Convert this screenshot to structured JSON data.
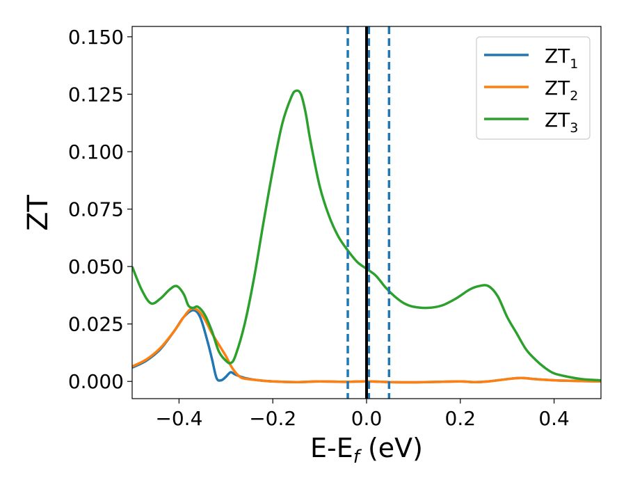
{
  "chart_data": {
    "type": "line",
    "title": "",
    "xlabel": {
      "main": "E-E",
      "sub": "f",
      "unit": " (eV)"
    },
    "ylabel": "ZT",
    "xlim": [
      -0.5,
      0.5
    ],
    "ylim": [
      -0.0075,
      0.1545
    ],
    "x_ticks": [
      {
        "value": -0.4,
        "label": "−0.4"
      },
      {
        "value": -0.2,
        "label": "−0.2"
      },
      {
        "value": 0.0,
        "label": "0.0"
      },
      {
        "value": 0.2,
        "label": "0.2"
      },
      {
        "value": 0.4,
        "label": "0.4"
      }
    ],
    "y_ticks": [
      {
        "value": 0.0,
        "label": "0.000"
      },
      {
        "value": 0.025,
        "label": "0.025"
      },
      {
        "value": 0.05,
        "label": "0.050"
      },
      {
        "value": 0.075,
        "label": "0.075"
      },
      {
        "value": 0.1,
        "label": "0.100"
      },
      {
        "value": 0.125,
        "label": "0.125"
      },
      {
        "value": 0.15,
        "label": "0.150"
      }
    ],
    "grid": false,
    "legend_position": "top-right",
    "series": [
      {
        "name": "ZT",
        "subscript": "1",
        "color": "#1f77b4",
        "x": [
          -0.5,
          -0.47,
          -0.44,
          -0.41,
          -0.39,
          -0.37,
          -0.355,
          -0.34,
          -0.33,
          -0.32,
          -0.31,
          -0.3,
          -0.29,
          -0.28,
          -0.26,
          -0.23,
          -0.2,
          -0.15,
          -0.1,
          -0.05,
          0.0,
          0.05,
          0.1,
          0.15,
          0.2,
          0.23,
          0.26,
          0.3,
          0.33,
          0.36,
          0.4,
          0.45,
          0.5
        ],
        "y": [
          0.006,
          0.009,
          0.014,
          0.022,
          0.028,
          0.031,
          0.028,
          0.018,
          0.01,
          0.0015,
          0.0005,
          0.002,
          0.004,
          0.003,
          0.0015,
          0.0005,
          0.0,
          -0.0003,
          0.0,
          -0.0002,
          0.0,
          -0.0003,
          -0.0004,
          -0.0002,
          0.0,
          -0.0003,
          0.0,
          0.001,
          0.0015,
          0.001,
          0.0005,
          0.0002,
          0.0
        ]
      },
      {
        "name": "ZT",
        "subscript": "2",
        "color": "#ff7f0e",
        "x": [
          -0.5,
          -0.47,
          -0.44,
          -0.41,
          -0.39,
          -0.375,
          -0.36,
          -0.345,
          -0.33,
          -0.315,
          -0.3,
          -0.29,
          -0.28,
          -0.27,
          -0.26,
          -0.23,
          -0.2,
          -0.15,
          -0.1,
          -0.05,
          0.0,
          0.05,
          0.1,
          0.15,
          0.2,
          0.23,
          0.26,
          0.3,
          0.33,
          0.36,
          0.4,
          0.45,
          0.5
        ],
        "y": [
          0.0065,
          0.0095,
          0.0145,
          0.022,
          0.028,
          0.0315,
          0.031,
          0.027,
          0.021,
          0.016,
          0.011,
          0.007,
          0.004,
          0.002,
          0.0012,
          0.0005,
          0.0,
          -0.0003,
          0.0,
          -0.0002,
          0.0,
          -0.0003,
          -0.0004,
          -0.0002,
          0.0,
          -0.0003,
          0.0,
          0.001,
          0.0015,
          0.001,
          0.0005,
          0.0002,
          0.0
        ]
      },
      {
        "name": "ZT",
        "subscript": "3",
        "color": "#2ca02c",
        "x": [
          -0.5,
          -0.48,
          -0.46,
          -0.44,
          -0.42,
          -0.405,
          -0.39,
          -0.38,
          -0.37,
          -0.36,
          -0.345,
          -0.33,
          -0.315,
          -0.3,
          -0.29,
          -0.28,
          -0.26,
          -0.24,
          -0.22,
          -0.2,
          -0.18,
          -0.16,
          -0.15,
          -0.14,
          -0.13,
          -0.12,
          -0.1,
          -0.08,
          -0.06,
          -0.04,
          -0.02,
          0.0,
          0.02,
          0.04,
          0.06,
          0.08,
          0.1,
          0.13,
          0.16,
          0.19,
          0.22,
          0.24,
          0.26,
          0.28,
          0.3,
          0.32,
          0.34,
          0.36,
          0.38,
          0.4,
          0.43,
          0.46,
          0.5
        ],
        "y": [
          0.05,
          0.04,
          0.034,
          0.036,
          0.04,
          0.0415,
          0.038,
          0.033,
          0.032,
          0.0325,
          0.029,
          0.022,
          0.013,
          0.009,
          0.008,
          0.011,
          0.025,
          0.045,
          0.069,
          0.092,
          0.112,
          0.124,
          0.1265,
          0.125,
          0.117,
          0.105,
          0.085,
          0.072,
          0.063,
          0.057,
          0.052,
          0.049,
          0.046,
          0.041,
          0.037,
          0.034,
          0.0325,
          0.032,
          0.033,
          0.036,
          0.04,
          0.0415,
          0.0415,
          0.037,
          0.028,
          0.021,
          0.014,
          0.0095,
          0.006,
          0.0035,
          0.002,
          0.001,
          0.0005
        ]
      }
    ],
    "vertical_lines": [
      {
        "x": -0.04,
        "style": "dashed",
        "color": "#1f77b4"
      },
      {
        "x": 0.005,
        "style": "dashed",
        "color": "#1f77b4"
      },
      {
        "x": 0.048,
        "style": "dashed",
        "color": "#1f77b4"
      },
      {
        "x": 0.0,
        "style": "solid",
        "color": "#000000"
      }
    ]
  }
}
